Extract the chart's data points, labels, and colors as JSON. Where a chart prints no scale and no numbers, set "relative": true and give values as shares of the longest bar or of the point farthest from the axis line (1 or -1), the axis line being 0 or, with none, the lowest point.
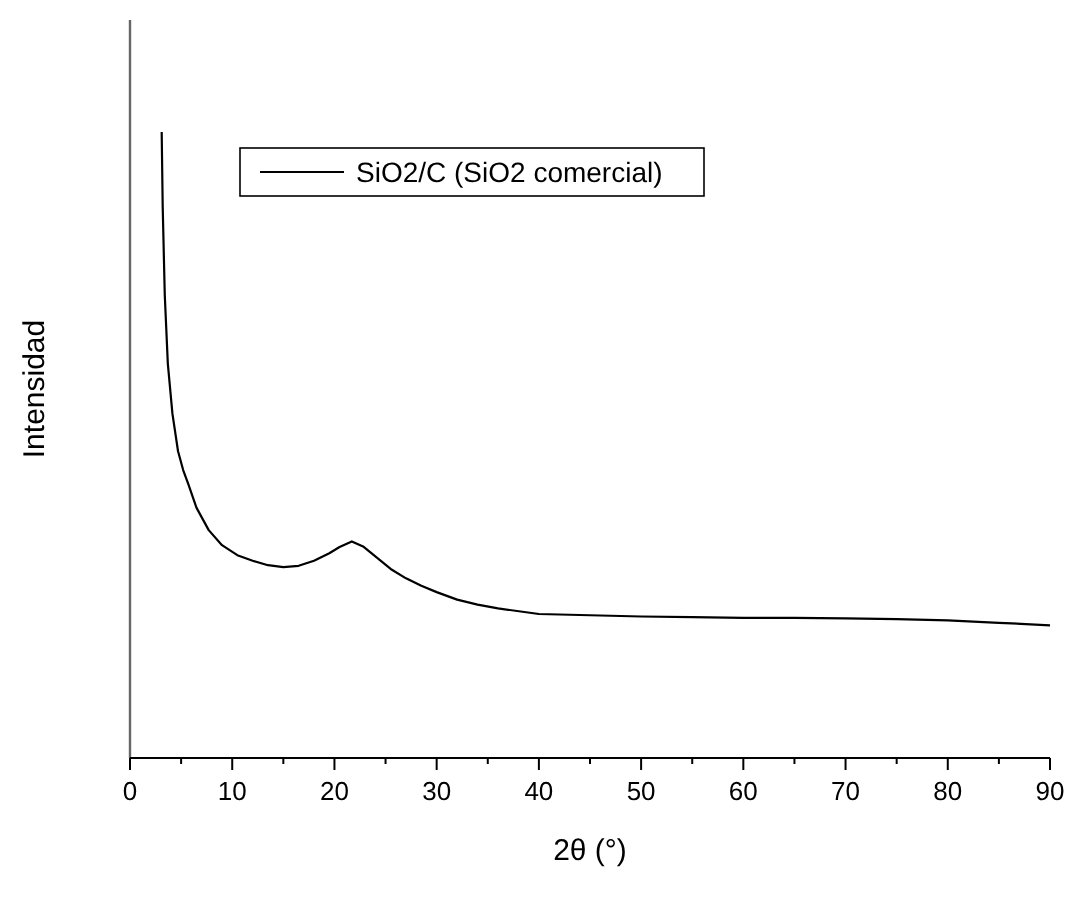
{
  "chart_data": {
    "type": "line",
    "relative": true,
    "xlabel": "2θ (°)",
    "ylabel": "Intensidad",
    "xlim": [
      0,
      90
    ],
    "xticks": [
      0,
      10,
      20,
      30,
      40,
      50,
      60,
      70,
      80,
      90
    ],
    "legend": "top left",
    "series": [
      {
        "name": "SiO2/C (SiO2 comercial)",
        "color": "#000000",
        "x": [
          3.1,
          3.2,
          3.4,
          3.7,
          4.15,
          4.7,
          5.2,
          5.74,
          6.5,
          7.7,
          9,
          10.5,
          12,
          13.5,
          15,
          16.5,
          18,
          19.5,
          20.5,
          21.7,
          22.8,
          24,
          25.5,
          27,
          28.5,
          30,
          32,
          34,
          36,
          40,
          45,
          50,
          55,
          60,
          65,
          70,
          75,
          80,
          85,
          90
        ],
        "values": [
          1.0,
          0.88,
          0.74,
          0.63,
          0.55,
          0.49,
          0.46,
          0.436,
          0.4,
          0.364,
          0.34,
          0.324,
          0.315,
          0.308,
          0.305,
          0.307,
          0.315,
          0.327,
          0.337,
          0.346,
          0.338,
          0.322,
          0.302,
          0.287,
          0.275,
          0.265,
          0.253,
          0.245,
          0.239,
          0.23,
          0.228,
          0.226,
          0.225,
          0.224,
          0.224,
          0.223,
          0.222,
          0.22,
          0.216,
          0.212
        ]
      }
    ]
  }
}
